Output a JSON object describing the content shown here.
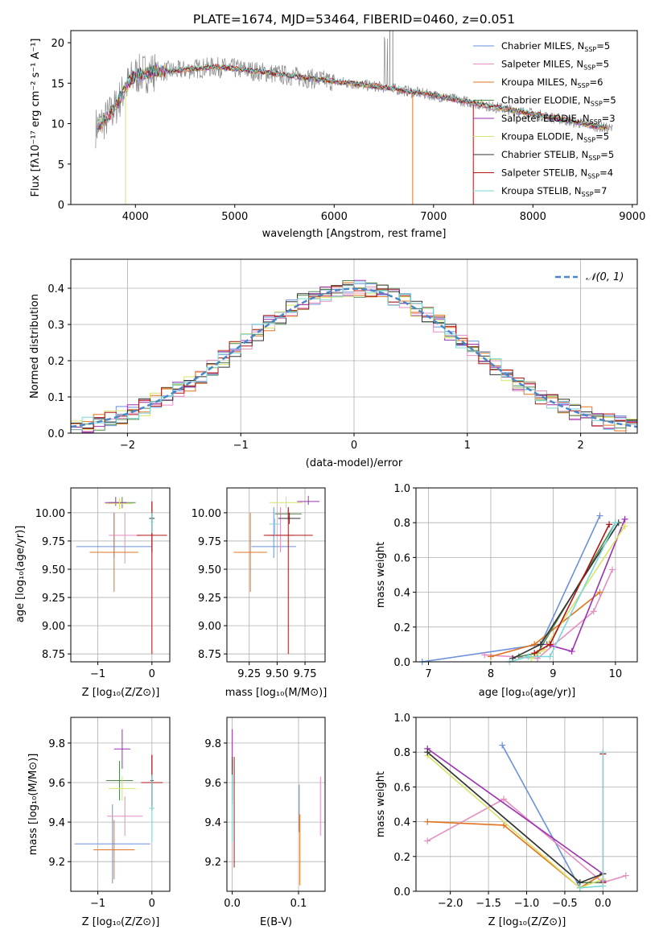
{
  "colors": [
    "#6a8fdf",
    "#e58ec0",
    "#e2731c",
    "#4f8a4f",
    "#9b30b0",
    "#d9e26a",
    "#333333",
    "#b01515",
    "#7ad8d8"
  ],
  "spectrum": {
    "title": "PLATE=1674, MJD=53464, FIBERID=0460, z=0.051",
    "xlabel": "wavelength [Angstrom, rest frame]",
    "ylabel": "Flux [fλ10⁻¹⁷ erg cm⁻² s⁻¹ A⁻¹]",
    "xticks": [
      "4000",
      "5000",
      "6000",
      "7000",
      "8000",
      "9000"
    ],
    "yticks": [
      "0",
      "5",
      "10",
      "15",
      "20"
    ],
    "legend": [
      {
        "model": "Chabrier MILES, N",
        "sub": "SSP",
        "eq": "=5"
      },
      {
        "model": "Salpeter MILES, N",
        "sub": "SSP",
        "eq": "=5"
      },
      {
        "model": "Kroupa MILES, N",
        "sub": "SSP",
        "eq": "=6"
      },
      {
        "model": "Chabrier ELODIE, N",
        "sub": "SSP",
        "eq": "=5"
      },
      {
        "model": "Salpeter ELODIE, N",
        "sub": "SSP",
        "eq": "=3"
      },
      {
        "model": "Kroupa ELODIE, N",
        "sub": "SSP",
        "eq": "=5"
      },
      {
        "model": "Chabrier STELIB, N",
        "sub": "SSP",
        "eq": "=5"
      },
      {
        "model": "Salpeter STELIB, N",
        "sub": "SSP",
        "eq": "=4"
      },
      {
        "model": "Kroupa STELIB, N",
        "sub": "SSP",
        "eq": "=7"
      }
    ]
  },
  "residuals": {
    "xlabel": "(data-model)/error",
    "ylabel": "Normed distribution",
    "xticks": [
      "−2",
      "−1",
      "0",
      "1",
      "2"
    ],
    "yticks": [
      "0.0",
      "0.1",
      "0.2",
      "0.3",
      "0.4"
    ],
    "legend": "𝒩(0, 1)"
  },
  "panels": {
    "age_label": "age  [log₁₀(age/yr)]",
    "z_label": "Z [log₁₀(Z/Z⊙)]",
    "mass_label": "mass [log₁₀(M/M⊙)]",
    "ebv_label": "E(B-V)",
    "weight_label": "mass weight",
    "p1_xticks": [
      "−1",
      "0"
    ],
    "p1_yticks": [
      "8.75",
      "9.00",
      "9.25",
      "9.50",
      "9.75",
      "10.00"
    ],
    "p2_xticks": [
      "9.25",
      "9.50",
      "9.75"
    ],
    "p3_xticks": [
      "7",
      "8",
      "9",
      "10"
    ],
    "w_yticks": [
      "0.0",
      "0.2",
      "0.4",
      "0.6",
      "0.8",
      "1.0"
    ],
    "p4_yticks": [
      "9.2",
      "9.4",
      "9.6",
      "9.8"
    ],
    "p5_xticks": [
      "0.0",
      "0.1"
    ],
    "p6_xticks": [
      "−2.0",
      "−1.5",
      "−1.0",
      "−0.5",
      "0.0"
    ]
  },
  "chart_data": [
    {
      "type": "line",
      "title": "PLATE=1674, MJD=53464, FIBERID=0460, z=0.051",
      "xlim": [
        3350,
        9050
      ],
      "ylim": [
        0,
        21.5
      ],
      "continuum_x": [
        3600,
        3700,
        3800,
        3900,
        4000,
        4200,
        4400,
        4600,
        4800,
        5000,
        5200,
        5500,
        6000,
        6500,
        7000,
        7500,
        8000,
        8500,
        8800
      ],
      "continuum_y": [
        9.5,
        10.5,
        12,
        14.5,
        16,
        16.5,
        16.5,
        16.8,
        17,
        16.8,
        16.5,
        16,
        15.2,
        14.5,
        13.5,
        12.3,
        11.2,
        10,
        9.3
      ]
    },
    {
      "type": "bar",
      "xlim": [
        -2.5,
        2.5
      ],
      "ylim": [
        0,
        0.48
      ],
      "bin_width": 0.1,
      "gaussian": {
        "mean": 0,
        "sigma": 1
      }
    },
    {
      "type": "scatter",
      "xlabel": "Z [log10(Z/Zsun)]",
      "ylabel": "age [log10(age/yr)]",
      "xlim": [
        -1.5,
        0.33
      ],
      "ylim": [
        8.68,
        10.22
      ],
      "points": [
        {
          "x": -0.7,
          "y": 9.7,
          "xerr": 0.7,
          "yerr_lo": 0.1,
          "yerr_hi": 0.3
        },
        {
          "x": -0.5,
          "y": 9.8,
          "xerr": 0.3,
          "yerr_lo": 0.25,
          "yerr_hi": 0.2
        },
        {
          "x": -0.7,
          "y": 9.65,
          "xerr": 0.45,
          "yerr_lo": 0.35,
          "yerr_hi": 0.35
        },
        {
          "x": -0.55,
          "y": 10.09,
          "xerr": 0.25,
          "yerr_lo": 0.05,
          "yerr_hi": 0.05
        },
        {
          "x": -0.67,
          "y": 10.09,
          "xerr": 0.2,
          "yerr_lo": 0.03,
          "yerr_hi": 0.05
        },
        {
          "x": -0.6,
          "y": 10.08,
          "xerr": 0.25,
          "yerr_lo": 0.05,
          "yerr_hi": 0.05
        },
        {
          "x": 0.0,
          "y": 9.95,
          "xerr": 0.05,
          "yerr_lo": 0.3,
          "yerr_hi": 0.15
        },
        {
          "x": 0.0,
          "y": 9.8,
          "xerr": 0.28,
          "yerr_lo": 1.05,
          "yerr_hi": 0.3
        },
        {
          "x": 0.0,
          "y": 9.92,
          "xerr": 0.03,
          "yerr_lo": 0.1,
          "yerr_hi": 0.08
        }
      ]
    },
    {
      "type": "scatter",
      "xlabel": "mass [log10(M/Msun)]",
      "ylabel": "age [log10(age/yr)]",
      "xlim": [
        9.05,
        9.93
      ],
      "ylim": [
        8.68,
        10.22
      ],
      "points": [
        {
          "x": 9.47,
          "y": 9.7,
          "xerr": 0.2,
          "yerr_lo": 0.1,
          "yerr_hi": 0.35
        },
        {
          "x": 9.53,
          "y": 9.8,
          "xerr": 0.12,
          "yerr_lo": 0.15,
          "yerr_hi": 0.25
        },
        {
          "x": 9.26,
          "y": 9.65,
          "xerr": 0.15,
          "yerr_lo": 0.35,
          "yerr_hi": 0.35
        },
        {
          "x": 9.6,
          "y": 9.99,
          "xerr": 0.12,
          "yerr_lo": 0.05,
          "yerr_hi": 0.05
        },
        {
          "x": 9.78,
          "y": 10.1,
          "xerr": 0.1,
          "yerr_lo": 0.03,
          "yerr_hi": 0.05
        },
        {
          "x": 9.58,
          "y": 10.09,
          "xerr": 0.15,
          "yerr_lo": 0.05,
          "yerr_hi": 0.05
        },
        {
          "x": 9.61,
          "y": 9.95,
          "xerr": 0.1,
          "yerr_lo": 0.05,
          "yerr_hi": 0.05
        },
        {
          "x": 9.6,
          "y": 9.8,
          "xerr": 0.22,
          "yerr_lo": 1.05,
          "yerr_hi": 0.25
        },
        {
          "x": 9.48,
          "y": 9.9,
          "xerr": 0.05,
          "yerr_lo": 0.1,
          "yerr_hi": 0.05
        }
      ]
    },
    {
      "type": "line",
      "xlabel": "age [log10(age/yr)]",
      "ylabel": "mass weight",
      "xlim": [
        6.8,
        10.35
      ],
      "ylim": [
        0,
        1.0
      ],
      "series": [
        {
          "x": [
            6.9,
            8.8,
            9.75
          ],
          "y": [
            0.0,
            0.1,
            0.84
          ]
        },
        {
          "x": [
            7.9,
            8.75,
            9.65,
            9.95
          ],
          "y": [
            0.04,
            0.02,
            0.29,
            0.53
          ]
        },
        {
          "x": [
            8.0,
            8.7,
            9.75
          ],
          "y": [
            0.03,
            0.1,
            0.4
          ]
        },
        {
          "x": [
            8.45,
            8.75,
            10.0
          ],
          "y": [
            0.03,
            0.05,
            0.8
          ]
        },
        {
          "x": [
            8.9,
            9.3,
            10.15
          ],
          "y": [
            0.1,
            0.06,
            0.82
          ]
        },
        {
          "x": [
            8.65,
            8.85,
            10.15
          ],
          "y": [
            0.02,
            0.07,
            0.78
          ]
        },
        {
          "x": [
            8.35,
            8.8,
            10.05
          ],
          "y": [
            0.02,
            0.1,
            0.8
          ]
        },
        {
          "x": [
            8.7,
            8.95,
            9.9
          ],
          "y": [
            0.05,
            0.1,
            0.79
          ]
        },
        {
          "x": [
            8.3,
            8.6,
            8.95,
            10.0
          ],
          "y": [
            0.0,
            0.03,
            0.03,
            0.8
          ]
        }
      ]
    },
    {
      "type": "scatter",
      "xlabel": "Z [log10(Z/Zsun)]",
      "ylabel": "mass [log10(M/Msun)]",
      "xlim": [
        -1.5,
        0.33
      ],
      "ylim": [
        9.05,
        9.93
      ],
      "points": [
        {
          "x": -0.73,
          "y": 9.29,
          "xerr": 0.7,
          "yerr": 0.2
        },
        {
          "x": -0.5,
          "y": 9.43,
          "xerr": 0.33,
          "yerr": 0.1
        },
        {
          "x": -0.7,
          "y": 9.26,
          "xerr": 0.38,
          "yerr": 0.15
        },
        {
          "x": -0.6,
          "y": 9.61,
          "xerr": 0.25,
          "yerr": 0.1
        },
        {
          "x": -0.55,
          "y": 9.77,
          "xerr": 0.15,
          "yerr": 0.1
        },
        {
          "x": -0.55,
          "y": 9.57,
          "xerr": 0.25,
          "yerr": 0.06
        },
        {
          "x": 0.0,
          "y": 9.61,
          "xerr": 0.03,
          "yerr": 0.13
        },
        {
          "x": 0.0,
          "y": 9.6,
          "xerr": 0.2,
          "yerr": 0.14
        },
        {
          "x": 0.0,
          "y": 9.47,
          "xerr": 0.05,
          "yerr": 0.17
        }
      ]
    },
    {
      "type": "scatter",
      "xlabel": "E(B-V)",
      "ylabel": "mass [log10(M/Msun)]",
      "xlim": [
        -0.008,
        0.14
      ],
      "ylim": [
        9.05,
        9.93
      ],
      "points": [
        {
          "x": 0.101,
          "y": 9.47,
          "yerr": 0.12
        },
        {
          "x": 0.133,
          "y": 9.48,
          "yerr": 0.15
        },
        {
          "x": 0.102,
          "y": 9.26,
          "yerr": 0.18
        },
        {
          "x": 0.0,
          "y": 9.61,
          "yerr": 0.1
        },
        {
          "x": 0.0,
          "y": 9.77,
          "yerr": 0.1
        },
        {
          "x": 0.0,
          "y": 9.57,
          "yerr": 0.06
        },
        {
          "x": 0.0,
          "y": 9.61,
          "yerr": 0.12
        },
        {
          "x": 0.003,
          "y": 9.45,
          "yerr": 0.28
        },
        {
          "x": 0.0,
          "y": 9.47,
          "yerr": 0.17
        }
      ]
    },
    {
      "type": "line",
      "xlabel": "Z [log10(Z/Zsun)]",
      "ylabel": "mass weight",
      "xlim": [
        -2.45,
        0.45
      ],
      "ylim": [
        0,
        1.0
      ],
      "series": [
        {
          "x": [
            -1.32,
            -0.3,
            0.0
          ],
          "y": [
            0.84,
            0.02,
            0.1
          ]
        },
        {
          "x": [
            -2.3,
            -1.3,
            0.0,
            0.3
          ],
          "y": [
            0.29,
            0.53,
            0.05,
            0.09
          ]
        },
        {
          "x": [
            -2.3,
            -1.3,
            -0.3,
            0.0
          ],
          "y": [
            0.4,
            0.38,
            0.02,
            0.1
          ]
        },
        {
          "x": [
            -2.3,
            -0.3,
            0.0
          ],
          "y": [
            0.8,
            0.05,
            0.05
          ]
        },
        {
          "x": [
            -2.3,
            0.0,
            0.0
          ],
          "y": [
            0.82,
            0.1,
            0.06
          ]
        },
        {
          "x": [
            -2.3,
            -0.3,
            0.0
          ],
          "y": [
            0.78,
            0.02,
            0.07
          ]
        },
        {
          "x": [
            -2.3,
            -0.3,
            0.0
          ],
          "y": [
            0.8,
            0.05,
            0.1
          ]
        },
        {
          "x": [
            0.0,
            0.0
          ],
          "y": [
            0.79,
            0.05
          ]
        },
        {
          "x": [
            0.0,
            0.0,
            -0.3
          ],
          "y": [
            0.8,
            0.03,
            0.02
          ]
        }
      ]
    }
  ]
}
